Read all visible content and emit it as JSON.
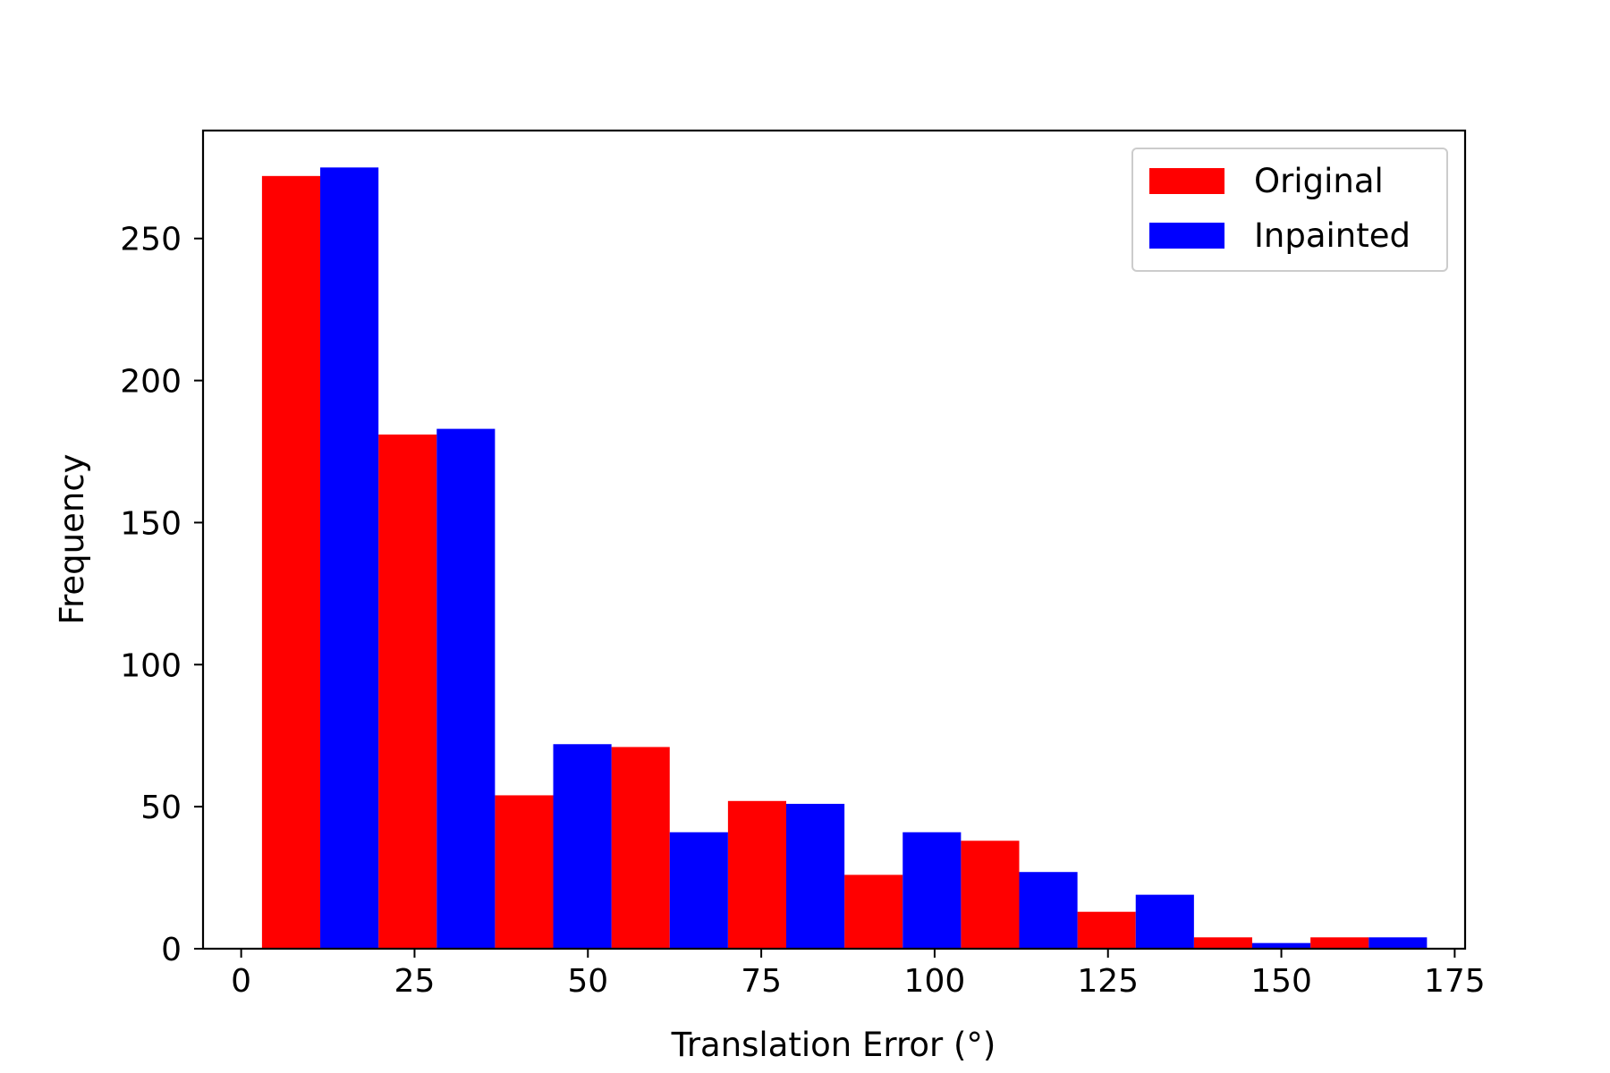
{
  "chart_data": {
    "type": "bar",
    "xlabel": "Translation Error (°)",
    "ylabel": "Frequency",
    "xlim": [
      -5.5,
      176.5
    ],
    "ylim": [
      0,
      288
    ],
    "xticks": [
      0,
      25,
      50,
      75,
      100,
      125,
      150,
      175
    ],
    "yticks": [
      0,
      50,
      100,
      150,
      200,
      250
    ],
    "grid": false,
    "legend_position": "top-right",
    "bin_edges": [
      3,
      19.8,
      36.6,
      53.4,
      70.2,
      87,
      103.8,
      120.6,
      137.4,
      154.2,
      171
    ],
    "series": [
      {
        "name": "Original",
        "color": "#ff0000",
        "values": [
          272,
          181,
          54,
          71,
          52,
          26,
          38,
          13,
          4,
          4
        ]
      },
      {
        "name": "Inpainted",
        "color": "#0000ff",
        "values": [
          275,
          183,
          72,
          41,
          51,
          41,
          27,
          19,
          2,
          4
        ]
      }
    ]
  }
}
